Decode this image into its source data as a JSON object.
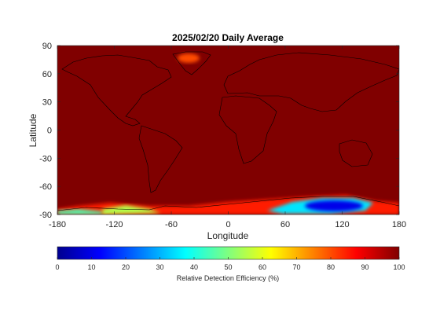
{
  "chart_data": {
    "type": "heatmap",
    "title": "2025/02/20 Daily Average",
    "xlabel": "Longitude",
    "ylabel": "Latitude",
    "xlim": [
      -180,
      180
    ],
    "ylim": [
      -90,
      90
    ],
    "xticks": [
      -180,
      -120,
      -60,
      0,
      60,
      120,
      180
    ],
    "yticks": [
      -90,
      -60,
      -30,
      0,
      30,
      60,
      90
    ],
    "grid": false,
    "colormap": "jet",
    "clim": [
      0,
      100
    ],
    "colorbar": {
      "label": "Relative Detection Efficiency (%)",
      "ticks": [
        0,
        10,
        20,
        30,
        40,
        50,
        60,
        70,
        80,
        90,
        100
      ],
      "placement": "bottom"
    },
    "background_value": 100,
    "features": [
      {
        "region": "Greenland interior",
        "lon": -42,
        "lat": 74,
        "value": 80
      },
      {
        "region": "Antarctica, East (80E to 140E)",
        "lon": 110,
        "lat": -80,
        "value": 10
      },
      {
        "region": "Antarctica, East (60E to 80E)",
        "lon": 70,
        "lat": -82,
        "value": 35
      },
      {
        "region": "Antarctica, West",
        "lon": -110,
        "lat": -82,
        "value": 55
      },
      {
        "region": "Antarctic coast belt",
        "lon": 0,
        "lat": -78,
        "value": 85
      },
      {
        "region": "Southern Ocean edge",
        "lon": -170,
        "lat": -86,
        "value": 45
      }
    ]
  }
}
